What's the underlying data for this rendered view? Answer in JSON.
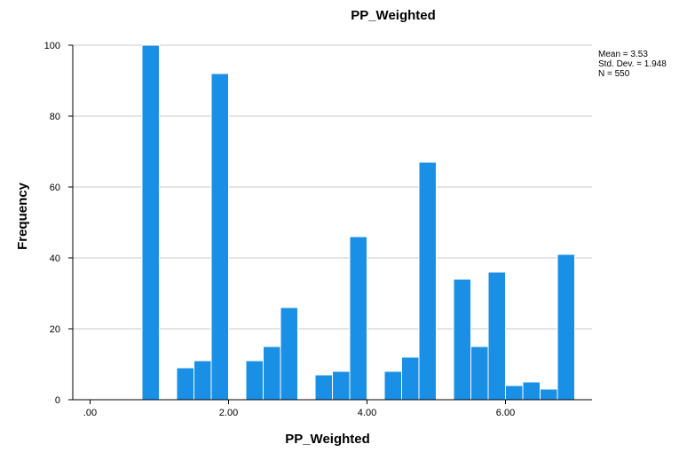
{
  "chart_data": {
    "type": "bar",
    "title": "PP_Weighted",
    "xlabel": "PP_Weighted",
    "ylabel": "Frequency",
    "xlim": [
      -0.25,
      7.25
    ],
    "ylim": [
      0,
      100
    ],
    "x_ticks": [
      {
        "value": 0,
        "label": ".00"
      },
      {
        "value": 2,
        "label": "2.00"
      },
      {
        "value": 4,
        "label": "4.00"
      },
      {
        "value": 6,
        "label": "6.00"
      }
    ],
    "y_ticks": [
      0,
      20,
      40,
      60,
      80,
      100
    ],
    "grid": true,
    "bar_color": "#1a8fe6",
    "bin_width": 0.25,
    "bins": [
      {
        "start": 0.75,
        "count": 100
      },
      {
        "start": 1.25,
        "count": 9
      },
      {
        "start": 1.5,
        "count": 11
      },
      {
        "start": 1.75,
        "count": 92
      },
      {
        "start": 2.25,
        "count": 11
      },
      {
        "start": 2.5,
        "count": 15
      },
      {
        "start": 2.75,
        "count": 26
      },
      {
        "start": 3.25,
        "count": 7
      },
      {
        "start": 3.5,
        "count": 8
      },
      {
        "start": 3.75,
        "count": 46
      },
      {
        "start": 4.25,
        "count": 8
      },
      {
        "start": 4.5,
        "count": 12
      },
      {
        "start": 4.75,
        "count": 67
      },
      {
        "start": 5.25,
        "count": 34
      },
      {
        "start": 5.5,
        "count": 15
      },
      {
        "start": 5.75,
        "count": 36
      },
      {
        "start": 6.0,
        "count": 4
      },
      {
        "start": 6.25,
        "count": 5
      },
      {
        "start": 6.5,
        "count": 3
      },
      {
        "start": 6.75,
        "count": 41
      }
    ],
    "stats": {
      "mean": "Mean = 3.53",
      "std_dev": "Std. Dev. = 1.948",
      "n": "N = 550"
    }
  }
}
